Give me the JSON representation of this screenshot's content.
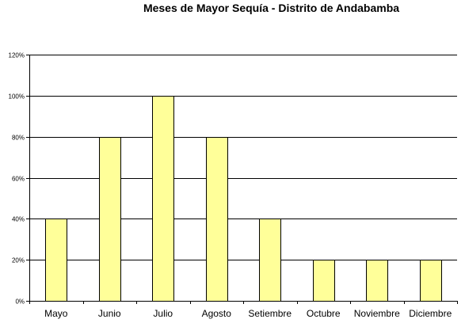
{
  "chart_data": {
    "type": "bar",
    "title": "Meses de Mayor Sequía - Distrito de Andabamba",
    "categories": [
      "Mayo",
      "Junio",
      "Julio",
      "Agosto",
      "Setiembre",
      "Octubre",
      "Noviembre",
      "Diciembre"
    ],
    "values": [
      40,
      80,
      100,
      80,
      40,
      20,
      20,
      20
    ],
    "ylim": [
      0,
      120
    ],
    "yticks": [
      0,
      20,
      40,
      60,
      80,
      100,
      120
    ],
    "ytick_labels": [
      "0%",
      "20%",
      "40%",
      "60%",
      "80%",
      "100%",
      "120%"
    ],
    "xlabel": "",
    "ylabel": "",
    "grid": true,
    "legend": "none",
    "colors": {
      "bar_fill": "#FFFF99",
      "bar_stroke": "#000000",
      "grid": "#000000",
      "background": "#FFFFFF"
    }
  }
}
